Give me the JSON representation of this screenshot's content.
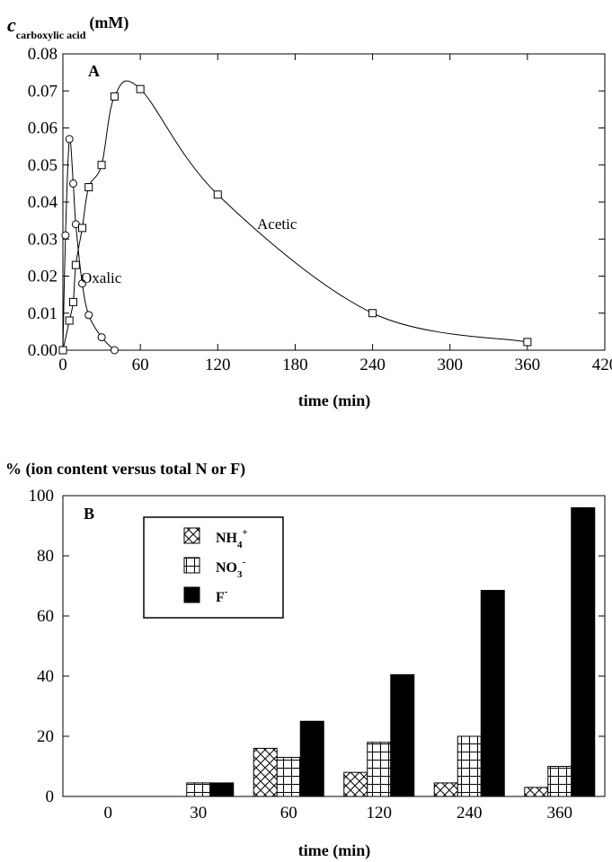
{
  "chart_data": [
    {
      "type": "line",
      "panel_label": "A",
      "ylabel_main": "c",
      "ylabel_sub": "carboxylic acid",
      "ylabel_unit": "(mM)",
      "xlabel": "time (min)",
      "xlim": [
        0,
        420
      ],
      "ylim": [
        0,
        0.08
      ],
      "xticks": [
        "0",
        "60",
        "120",
        "180",
        "240",
        "300",
        "360",
        "420"
      ],
      "yticks": [
        "0.00",
        "0.01",
        "0.02",
        "0.03",
        "0.04",
        "0.05",
        "0.06",
        "0.07",
        "0.08"
      ],
      "series": [
        {
          "name": "Oxalic",
          "marker": "circle",
          "x": [
            0,
            2,
            5,
            8,
            10,
            15,
            20,
            30,
            40
          ],
          "y": [
            0.0,
            0.031,
            0.057,
            0.045,
            0.034,
            0.018,
            0.0095,
            0.0035,
            0.0
          ]
        },
        {
          "name": "Acetic",
          "marker": "square",
          "x": [
            0,
            5,
            8,
            10,
            15,
            20,
            30,
            40,
            60,
            120,
            240,
            360
          ],
          "y": [
            0.0,
            0.008,
            0.013,
            0.023,
            0.033,
            0.044,
            0.05,
            0.0685,
            0.0705,
            0.042,
            0.01,
            0.0022
          ]
        }
      ]
    },
    {
      "type": "bar",
      "panel_label": "B",
      "ylabel": "% (ion content versus total N or F)",
      "xlabel": "time (min)",
      "categories": [
        "0",
        "30",
        "60",
        "120",
        "240",
        "360"
      ],
      "ylim": [
        0,
        100
      ],
      "yticks": [
        "0",
        "20",
        "40",
        "60",
        "80",
        "100"
      ],
      "series": [
        {
          "name": "NH4+",
          "label_base": "NH",
          "label_sub": "4",
          "label_sup": "+",
          "pattern": "crosshatch",
          "values": [
            0,
            0,
            16,
            8,
            4.5,
            3
          ]
        },
        {
          "name": "NO3-",
          "label_base": "NO",
          "label_sub": "3",
          "label_sup": "-",
          "pattern": "grid",
          "values": [
            0,
            4.5,
            13,
            18,
            20,
            10
          ]
        },
        {
          "name": "F-",
          "label_base": "F",
          "label_sub": "",
          "label_sup": "-",
          "pattern": "solid",
          "values": [
            0,
            4.5,
            25,
            40.5,
            68.5,
            96
          ]
        }
      ]
    }
  ]
}
